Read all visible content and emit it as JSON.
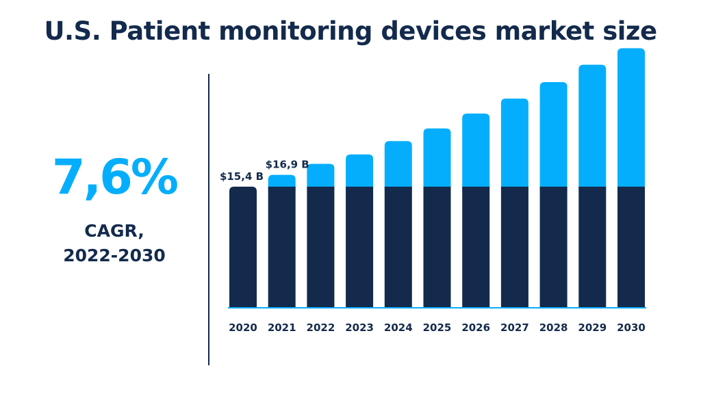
{
  "title": "U.S. Patient monitoring devices market size",
  "cagr": {
    "value": "7,6%",
    "label_line1": "CAGR,",
    "label_line2": "2022-2030"
  },
  "colors": {
    "dark": "#132a4c",
    "accent": "#05aefc",
    "baseline": "#05aefc"
  },
  "chart_data": {
    "type": "bar",
    "stacked": true,
    "categories": [
      "2020",
      "2021",
      "2022",
      "2023",
      "2024",
      "2025",
      "2026",
      "2027",
      "2028",
      "2029",
      "2030"
    ],
    "series": [
      {
        "values": [
          15.4,
          15.4,
          15.4,
          15.4,
          15.4,
          15.4,
          15.4,
          15.4,
          15.4,
          15.4,
          15.4
        ]
      },
      {
        "values": [
          0,
          1.5,
          2.9,
          4.1,
          5.8,
          7.4,
          9.3,
          11.2,
          13.3,
          15.5,
          17.6
        ]
      }
    ],
    "data_labels": [
      {
        "category": "2020",
        "text": "$15,4 B"
      },
      {
        "category": "2021",
        "text": "$16,9 B"
      }
    ],
    "ylim": [
      0,
      36
    ]
  }
}
